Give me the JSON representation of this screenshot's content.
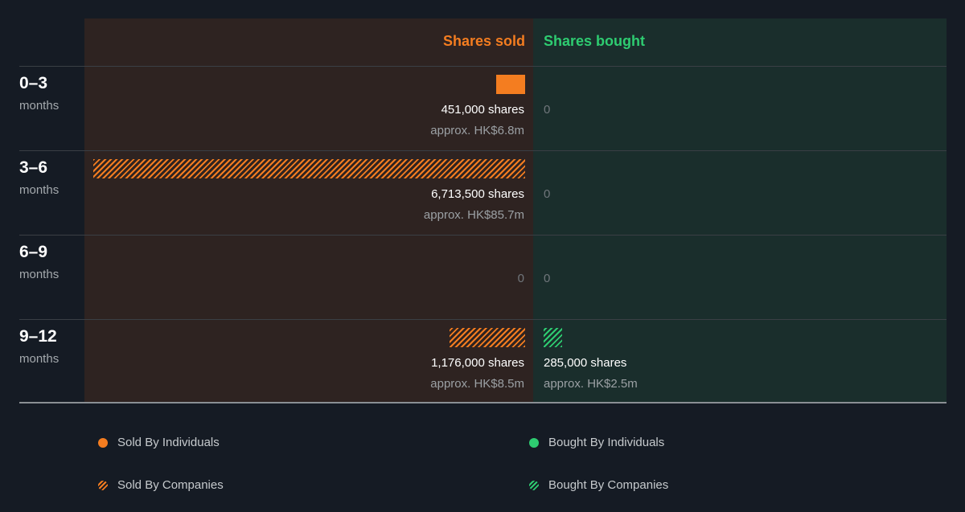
{
  "chart_data": {
    "type": "bar",
    "columns": {
      "sold": "Shares sold",
      "bought": "Shares bought"
    },
    "categories": [
      {
        "num": "0–3",
        "unit": "months"
      },
      {
        "num": "3–6",
        "unit": "months"
      },
      {
        "num": "6–9",
        "unit": "months"
      },
      {
        "num": "9–12",
        "unit": "months"
      }
    ],
    "rows": [
      {
        "sold_individuals": 451000,
        "sold_companies": 0,
        "bought_individuals": 0,
        "bought_companies": 0,
        "sold_shares": "451,000 shares",
        "sold_approx": "approx. HK$6.8m",
        "bought_shares": "0",
        "bought_approx": ""
      },
      {
        "sold_individuals": 0,
        "sold_companies": 6713500,
        "bought_individuals": 0,
        "bought_companies": 0,
        "sold_shares": "6,713,500 shares",
        "sold_approx": "approx. HK$85.7m",
        "bought_shares": "0",
        "bought_approx": ""
      },
      {
        "sold_individuals": 0,
        "sold_companies": 0,
        "bought_individuals": 0,
        "bought_companies": 0,
        "sold_shares": "0",
        "sold_approx": "",
        "bought_shares": "0",
        "bought_approx": ""
      },
      {
        "sold_individuals": 0,
        "sold_companies": 1176000,
        "bought_individuals": 0,
        "bought_companies": 285000,
        "sold_shares": "1,176,000 shares",
        "sold_approx": "approx. HK$8.5m",
        "bought_shares": "285,000 shares",
        "bought_approx": "approx. HK$2.5m"
      }
    ],
    "max_value": 6713500,
    "legend": [
      {
        "label": "Sold By Individuals",
        "key": "sold_individuals",
        "color": "#f47d20",
        "style": "solid"
      },
      {
        "label": "Bought By Individuals",
        "key": "bought_individuals",
        "color": "#2ecc71",
        "style": "solid"
      },
      {
        "label": "Sold By Companies",
        "key": "sold_companies",
        "color": "#f47d20",
        "style": "hatched"
      },
      {
        "label": "Bought By Companies",
        "key": "bought_companies",
        "color": "#2ecc71",
        "style": "hatched"
      }
    ],
    "colors": {
      "sold": "#f47d20",
      "bought": "#2ecc71",
      "sold_panel": "#2e2321",
      "bought_panel": "#1a2e2c",
      "background": "#151b24"
    }
  }
}
